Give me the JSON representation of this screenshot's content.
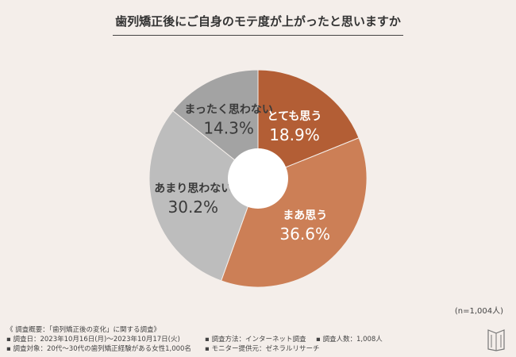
{
  "title": "歯列矯正後にご自身のモテ度が上がったと思いますか",
  "sample_size": "(n=1,004人)",
  "notes": {
    "heading": "《 調査概要：「歯列矯正後の変化」に関する調査》",
    "date": "調査日：2023年10月16日(月)〜2023年10月17日(火)",
    "method": "調査方法：インターネット調査",
    "count": "調査人数：1,008人",
    "target": "調査対象：20代〜30代の歯列矯正経験がある女性1,000名",
    "provider": "モニター提供元：ゼネラルリサーチ"
  },
  "chart_data": {
    "type": "pie",
    "title": "歯列矯正後にご自身のモテ度が上がったと思いますか",
    "categories": [
      "とても思う",
      "まあ思う",
      "あまり思わない",
      "まったく思わない"
    ],
    "values": [
      18.9,
      36.6,
      30.2,
      14.3
    ],
    "value_labels": [
      "18.9%",
      "36.6%",
      "30.2%",
      "14.3%"
    ],
    "colors": [
      "#b35e35",
      "#cc7f56",
      "#bdbdbd",
      "#a3a3a3"
    ],
    "donut": true,
    "start": "top",
    "direction": "clockwise"
  }
}
